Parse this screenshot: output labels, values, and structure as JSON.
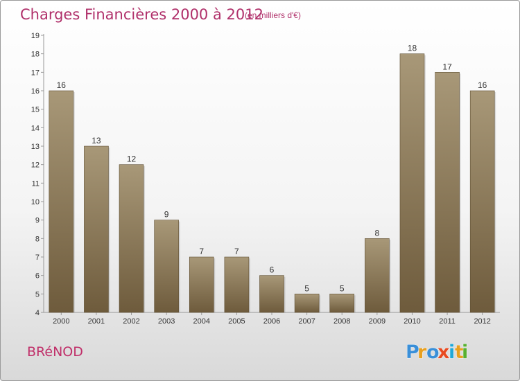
{
  "title": "Charges Financières 2000 à 2012",
  "subtitle": "(en milliers d'€)",
  "commune": "BRéNOD",
  "logo_text": "Proxiti",
  "colors": {
    "title": "#b0306a",
    "bar_top": "#a89878",
    "bar_bottom": "#6e5b3c",
    "logo_letters": [
      "#3a8fd8",
      "#e8a020",
      "#3a8fd8",
      "#e84a20",
      "#20a8d8",
      "#e8a020",
      "#58b030"
    ]
  },
  "chart_data": {
    "type": "bar",
    "categories": [
      "2000",
      "2001",
      "2002",
      "2003",
      "2004",
      "2005",
      "2006",
      "2007",
      "2008",
      "2009",
      "2010",
      "2011",
      "2012"
    ],
    "values": [
      16,
      13,
      12,
      9,
      7,
      7,
      6,
      5,
      5,
      8,
      18,
      17,
      16
    ],
    "data_labels": [
      "16",
      "13",
      "12",
      "9",
      "7",
      "7",
      "6",
      "5",
      "5",
      "8",
      "18",
      "17",
      "16"
    ],
    "y_ticks": [
      "4",
      "5",
      "6",
      "7",
      "8",
      "9",
      "10",
      "11",
      "12",
      "13",
      "14",
      "15",
      "16",
      "17",
      "18",
      "19"
    ],
    "ylim": [
      4,
      19
    ],
    "grid": false,
    "xlabel": "",
    "ylabel": ""
  }
}
